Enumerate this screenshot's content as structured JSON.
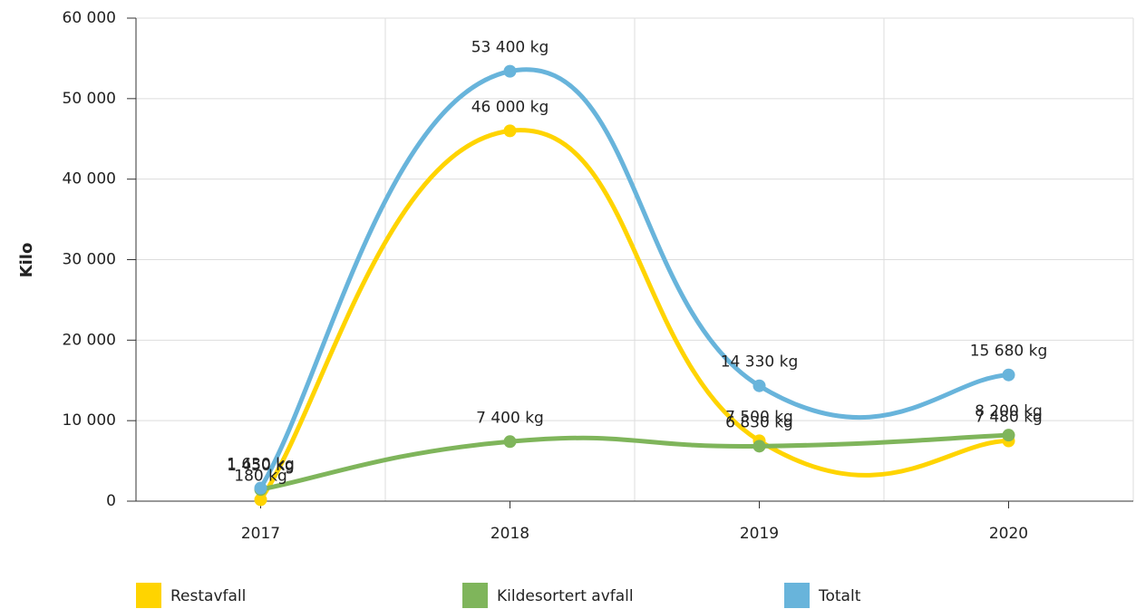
{
  "chart_data": {
    "type": "line",
    "y_label": "Kilo",
    "categories": [
      "2017",
      "2018",
      "2019",
      "2020"
    ],
    "series": [
      {
        "name": "Restavfall",
        "color": "#ffd400",
        "values": [
          180,
          46000,
          7500,
          7480
        ],
        "value_labels": [
          "180 kg",
          "46 000 kg",
          "7 500 kg",
          "7 480 kg"
        ]
      },
      {
        "name": "Kildesortert avfall",
        "color": "#7fb55b",
        "values": [
          1450,
          7400,
          6830,
          8200
        ],
        "value_labels": [
          "1 450 kg",
          "7 400 kg",
          "6 830 kg",
          "8 200 kg"
        ]
      },
      {
        "name": "Totalt",
        "color": "#68b4db",
        "values": [
          1630,
          53400,
          14330,
          15680
        ],
        "value_labels": [
          "1 630 kg",
          "53 400 kg",
          "14 330 kg",
          "15 680 kg"
        ]
      }
    ],
    "ylim": [
      0,
      60000
    ],
    "yticks": [
      0,
      {
        "value": 10000,
        "label": "10 000"
      },
      {
        "value": 20000,
        "label": "20 000"
      },
      {
        "value": 30000,
        "label": "30 000"
      },
      {
        "value": 40000,
        "label": "40 000"
      },
      {
        "value": 50000,
        "label": "50 000"
      },
      {
        "value": 60000,
        "label": "60 000"
      }
    ],
    "grid": true
  }
}
